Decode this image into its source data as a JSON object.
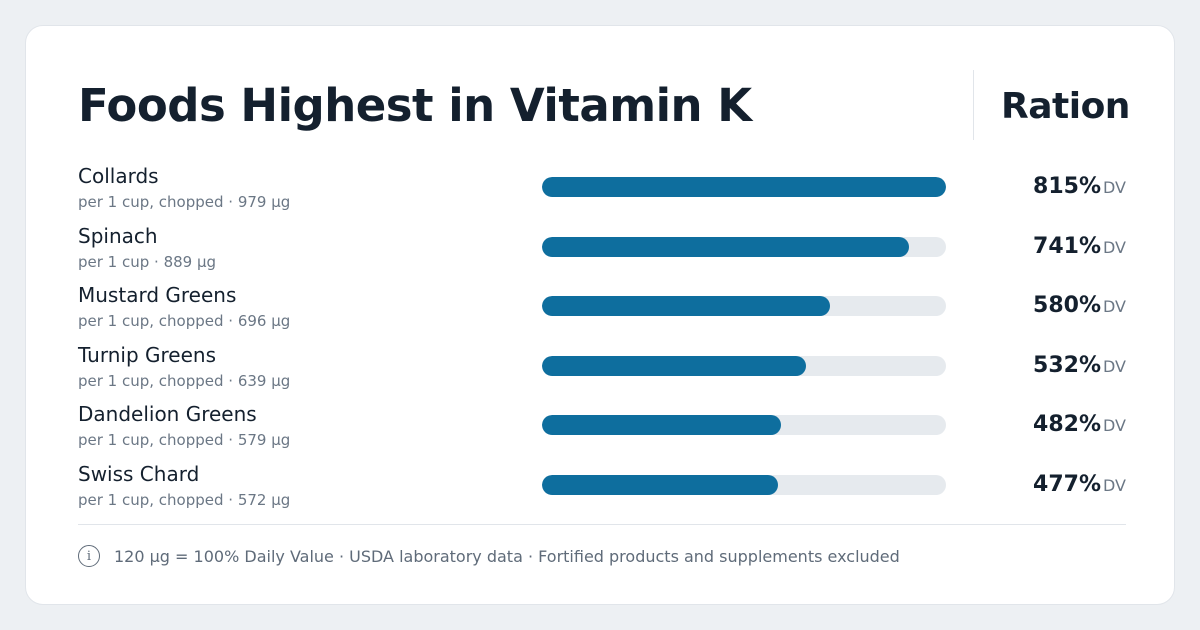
{
  "header": {
    "title": "Foods Highest in Vitamin K",
    "brand": "Ration"
  },
  "colors": {
    "bar_fill": "#0e6e9e",
    "bar_track": "#e6eaee",
    "text_primary": "#14202e",
    "text_secondary": "#6b7785",
    "background": "#edf0f3"
  },
  "unit_label": "DV",
  "chart_data": {
    "type": "bar",
    "orientation": "horizontal",
    "title": "Foods Highest in Vitamin K",
    "categories": [
      "Collards",
      "Spinach",
      "Mustard Greens",
      "Turnip Greens",
      "Dandelion Greens",
      "Swiss Chard"
    ],
    "values": [
      815,
      741,
      580,
      532,
      482,
      477
    ],
    "value_unit": "% DV",
    "xlim": [
      0,
      815
    ],
    "grid": false,
    "legend": "none"
  },
  "rows": [
    {
      "name": "Collards",
      "detail": "per 1 cup, chopped · 979 µg",
      "pct": "815%",
      "value": 815
    },
    {
      "name": "Spinach",
      "detail": "per 1 cup · 889 µg",
      "pct": "741%",
      "value": 741
    },
    {
      "name": "Mustard Greens",
      "detail": "per 1 cup, chopped · 696 µg",
      "pct": "580%",
      "value": 580
    },
    {
      "name": "Turnip Greens",
      "detail": "per 1 cup, chopped · 639 µg",
      "pct": "532%",
      "value": 532
    },
    {
      "name": "Dandelion Greens",
      "detail": "per 1 cup, chopped · 579 µg",
      "pct": "482%",
      "value": 482
    },
    {
      "name": "Swiss Chard",
      "detail": "per 1 cup, chopped · 572 µg",
      "pct": "477%",
      "value": 477
    }
  ],
  "footer": {
    "icon": "info-icon",
    "icon_glyph": "i",
    "note": "120 µg = 100% Daily Value · USDA laboratory data · Fortified products and supplements excluded"
  }
}
